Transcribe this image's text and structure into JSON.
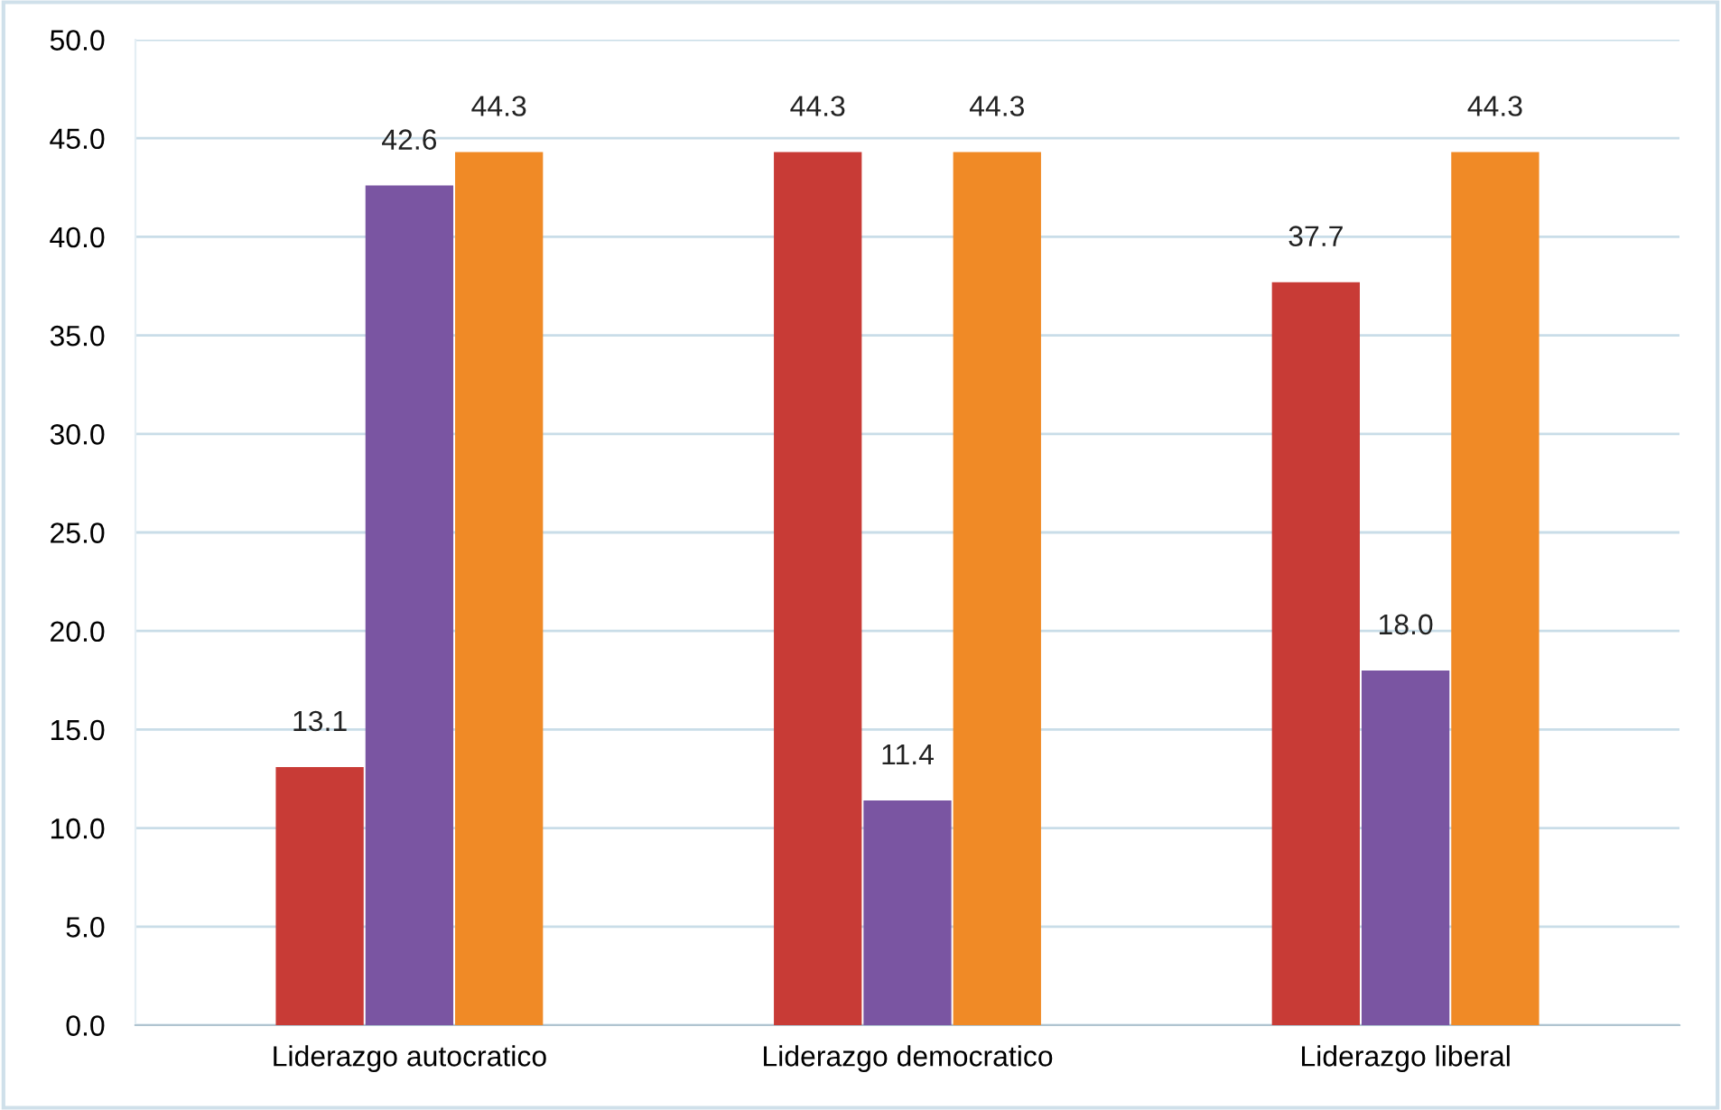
{
  "chart_data": {
    "type": "bar",
    "categories": [
      "Liderazgo autocratico",
      "Liderazgo democratico",
      "Liderazgo liberal"
    ],
    "series": [
      {
        "color": "#c83b36",
        "values": [
          13.1,
          44.3,
          37.7
        ],
        "value_labels": [
          "13.1",
          "44.3",
          "37.7"
        ]
      },
      {
        "color": "#7a55a2",
        "values": [
          42.6,
          11.4,
          18.0
        ],
        "value_labels": [
          "42.6",
          "11.4",
          "18.0"
        ]
      },
      {
        "color": "#f08a26",
        "values": [
          44.3,
          44.3,
          44.3
        ],
        "value_labels": [
          "44.3",
          "44.3",
          "44.3"
        ]
      }
    ],
    "ylim": [
      0,
      50
    ],
    "yticks": [
      {
        "value": 0,
        "label": "0.0"
      },
      {
        "value": 5,
        "label": "5.0"
      },
      {
        "value": 10,
        "label": "10.0"
      },
      {
        "value": 15,
        "label": "15.0"
      },
      {
        "value": 20,
        "label": "20.0"
      },
      {
        "value": 25,
        "label": "25.0"
      },
      {
        "value": 30,
        "label": "30.0"
      },
      {
        "value": 35,
        "label": "35.0"
      },
      {
        "value": 40,
        "label": "40.0"
      },
      {
        "value": 45,
        "label": "45.0"
      },
      {
        "value": 50,
        "label": "50.0"
      }
    ],
    "grid": "y"
  }
}
